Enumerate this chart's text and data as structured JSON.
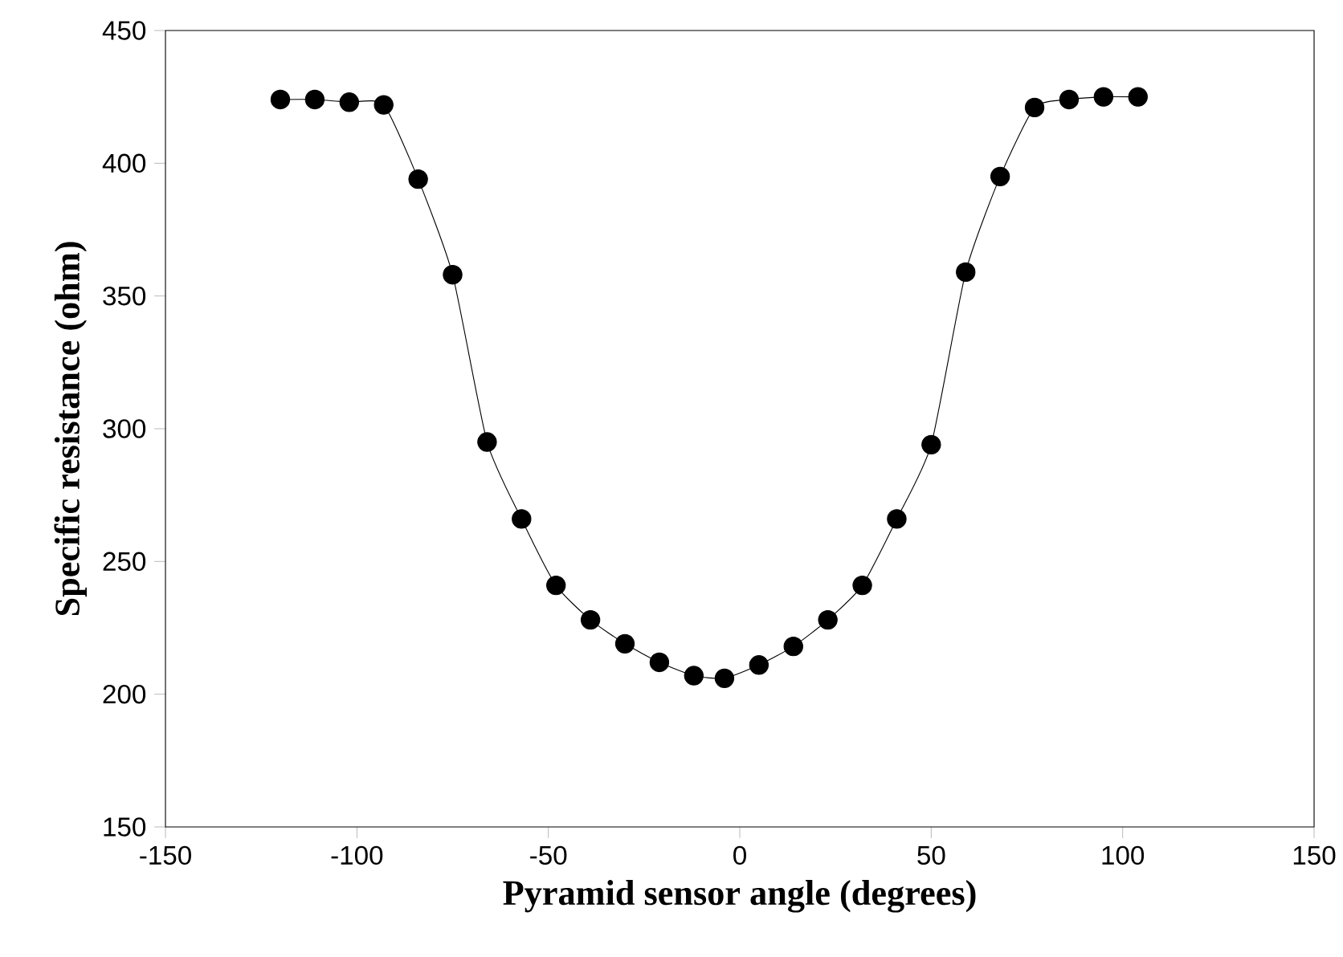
{
  "chart_data": {
    "type": "line",
    "xlabel": "Pyramid sensor angle (degrees)",
    "ylabel": "Specific resistance (ohm)",
    "xlim": [
      -150,
      150
    ],
    "xticks": [
      -150,
      -100,
      -50,
      0,
      50,
      100,
      150
    ],
    "ylim": [
      150,
      450
    ],
    "yticks": [
      150,
      200,
      250,
      300,
      350,
      400,
      450
    ],
    "grid": false,
    "marker": "circle",
    "line_style": "solid",
    "series": [
      {
        "color": "#000000",
        "x": [
          -120,
          -111,
          -102,
          -93,
          -84,
          -75,
          -66,
          -57,
          -48,
          -39,
          -30,
          -21,
          -12,
          -4,
          5,
          14,
          23,
          32,
          41,
          50,
          59,
          68,
          77,
          86,
          95,
          104
        ],
        "values": [
          424,
          424,
          423,
          422,
          394,
          358,
          295,
          266,
          241,
          228,
          219,
          212,
          207,
          206,
          211,
          218,
          228,
          241,
          266,
          294,
          359,
          395,
          421,
          424,
          425,
          425
        ]
      }
    ]
  }
}
